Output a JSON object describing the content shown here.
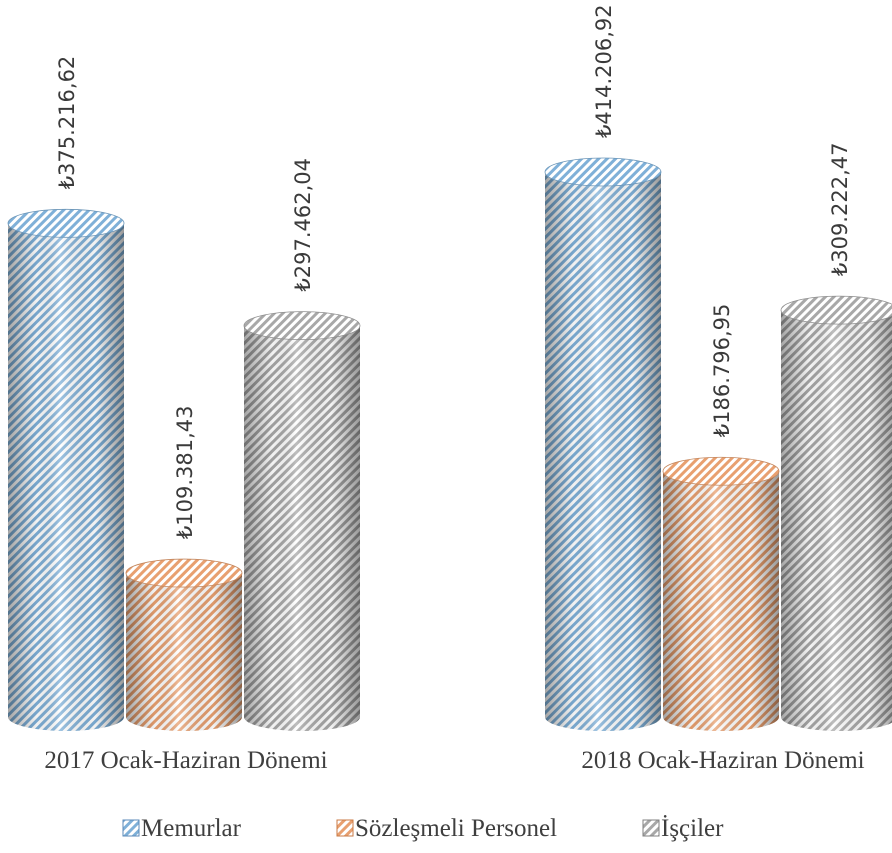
{
  "chart_data": {
    "type": "bar",
    "style": "3d-cylinder",
    "categories": [
      "2017 Ocak-Haziran Dönemi",
      "2018 Ocak-Haziran Dönemi"
    ],
    "series": [
      {
        "name": "Memurlar",
        "values": [
          375216.62,
          414206.92
        ],
        "value_labels": [
          "₺375.216,62",
          "₺414.206,92"
        ],
        "color": "#7fb0d8"
      },
      {
        "name": "Sözleşmeli Personel",
        "values": [
          109381.43,
          186796.95
        ],
        "value_labels": [
          "₺109.381,43",
          "₺186.796,95"
        ],
        "color": "#e8a070"
      },
      {
        "name": "İşçiler",
        "values": [
          297462.04,
          309222.47
        ],
        "value_labels": [
          "₺297.462,04",
          "₺309.222,47"
        ],
        "color": "#a8a8a8"
      }
    ],
    "legend_position": "bottom",
    "grid": false
  }
}
